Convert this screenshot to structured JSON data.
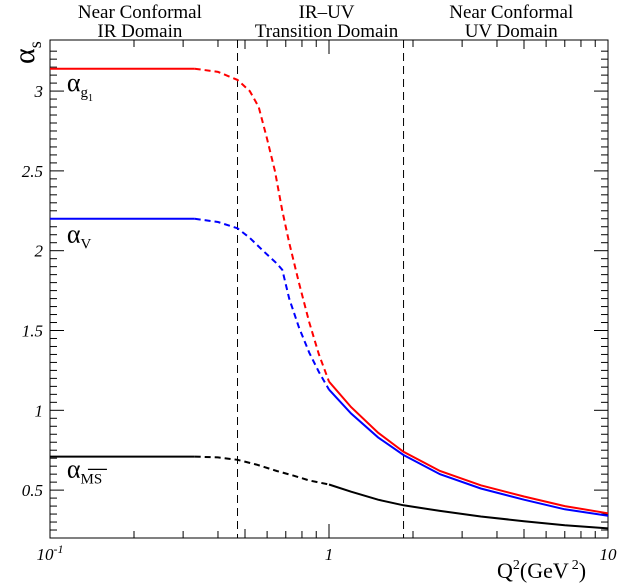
{
  "chart_data": {
    "type": "line",
    "xscale": "log",
    "xlim": [
      0.1,
      10
    ],
    "ylim": [
      0.2,
      3.32
    ],
    "xlabel": "Q",
    "xlabel_sup": "2",
    "xlabel_paren_open": "(GeV",
    "xlabel_unit_sup": "2",
    "xlabel_paren_close": ")",
    "ylabel": "α",
    "ylabel_sub": "s",
    "xticks": [
      {
        "value": 0.1,
        "label_base": "10",
        "label_sup": "-1"
      },
      {
        "value": 1,
        "label_base": "1",
        "label_sup": ""
      },
      {
        "value": 10,
        "label_base": "10",
        "label_sup": ""
      }
    ],
    "yticks": [
      {
        "value": 0.5,
        "label": "0.5"
      },
      {
        "value": 1,
        "label": "1"
      },
      {
        "value": 1.5,
        "label": "1.5"
      },
      {
        "value": 2,
        "label": "2"
      },
      {
        "value": 2.5,
        "label": "2.5"
      },
      {
        "value": 3,
        "label": "3"
      }
    ],
    "domain_boundaries": [
      0.47,
      1.85
    ],
    "domains": [
      {
        "line1": "Near Conformal",
        "line2": "IR Domain",
        "x_center": 0.21
      },
      {
        "line1": "IR–UV",
        "line2": "Transition Domain",
        "x_center": 0.98
      },
      {
        "line1": "Near Conformal",
        "line2": "UV Domain",
        "x_center": 4.5
      }
    ],
    "series": [
      {
        "name": "α",
        "sub": "g",
        "subsub": "1",
        "color": "#ff0000",
        "label_at": {
          "x": 0.115,
          "y": 3.0
        },
        "solid_ir": [
          [
            0.1,
            3.14
          ],
          [
            0.33,
            3.14
          ]
        ],
        "dashed": [
          [
            0.33,
            3.14
          ],
          [
            0.4,
            3.12
          ],
          [
            0.47,
            3.07
          ],
          [
            0.52,
            3.0
          ],
          [
            0.56,
            2.9
          ],
          [
            0.6,
            2.7
          ],
          [
            0.64,
            2.5
          ],
          [
            0.68,
            2.25
          ],
          [
            0.72,
            2.05
          ],
          [
            0.78,
            1.8
          ],
          [
            0.85,
            1.55
          ],
          [
            0.92,
            1.35
          ],
          [
            1.0,
            1.18
          ]
        ],
        "solid_uv": [
          [
            1.0,
            1.18
          ],
          [
            1.2,
            1.02
          ],
          [
            1.5,
            0.86
          ],
          [
            1.85,
            0.74
          ],
          [
            2.5,
            0.62
          ],
          [
            3.5,
            0.53
          ],
          [
            5,
            0.46
          ],
          [
            7,
            0.4
          ],
          [
            10,
            0.355
          ]
        ]
      },
      {
        "name": "α",
        "sub": "V",
        "subsub": "",
        "color": "#0000ff",
        "label_at": {
          "x": 0.115,
          "y": 2.05
        },
        "solid_ir": [
          [
            0.1,
            2.2
          ],
          [
            0.33,
            2.2
          ]
        ],
        "dashed": [
          [
            0.33,
            2.2
          ],
          [
            0.4,
            2.18
          ],
          [
            0.47,
            2.14
          ],
          [
            0.52,
            2.08
          ],
          [
            0.58,
            2.0
          ],
          [
            0.65,
            1.92
          ],
          [
            0.68,
            1.88
          ],
          [
            0.72,
            1.7
          ],
          [
            0.78,
            1.52
          ],
          [
            0.85,
            1.36
          ],
          [
            0.92,
            1.24
          ],
          [
            1.0,
            1.13
          ]
        ],
        "solid_uv": [
          [
            1.0,
            1.13
          ],
          [
            1.2,
            0.98
          ],
          [
            1.5,
            0.83
          ],
          [
            1.85,
            0.72
          ],
          [
            2.5,
            0.6
          ],
          [
            3.5,
            0.51
          ],
          [
            5,
            0.44
          ],
          [
            7,
            0.38
          ],
          [
            10,
            0.34
          ]
        ]
      },
      {
        "name": "α",
        "sub": "MS",
        "subsub": "",
        "color": "#000000",
        "label_at": {
          "x": 0.115,
          "y": 0.58
        },
        "solid_ir": [
          [
            0.1,
            0.71
          ],
          [
            0.33,
            0.71
          ]
        ],
        "dashed": [
          [
            0.33,
            0.71
          ],
          [
            0.4,
            0.705
          ],
          [
            0.47,
            0.69
          ],
          [
            0.55,
            0.66
          ],
          [
            0.65,
            0.62
          ],
          [
            0.75,
            0.59
          ],
          [
            0.85,
            0.56
          ],
          [
            1.0,
            0.535
          ]
        ],
        "solid_uv": [
          [
            1.0,
            0.535
          ],
          [
            1.2,
            0.49
          ],
          [
            1.5,
            0.44
          ],
          [
            1.85,
            0.405
          ],
          [
            2.5,
            0.37
          ],
          [
            3.5,
            0.335
          ],
          [
            5,
            0.305
          ],
          [
            7,
            0.28
          ],
          [
            10,
            0.26
          ]
        ]
      }
    ],
    "grid": false,
    "legend": "none"
  }
}
